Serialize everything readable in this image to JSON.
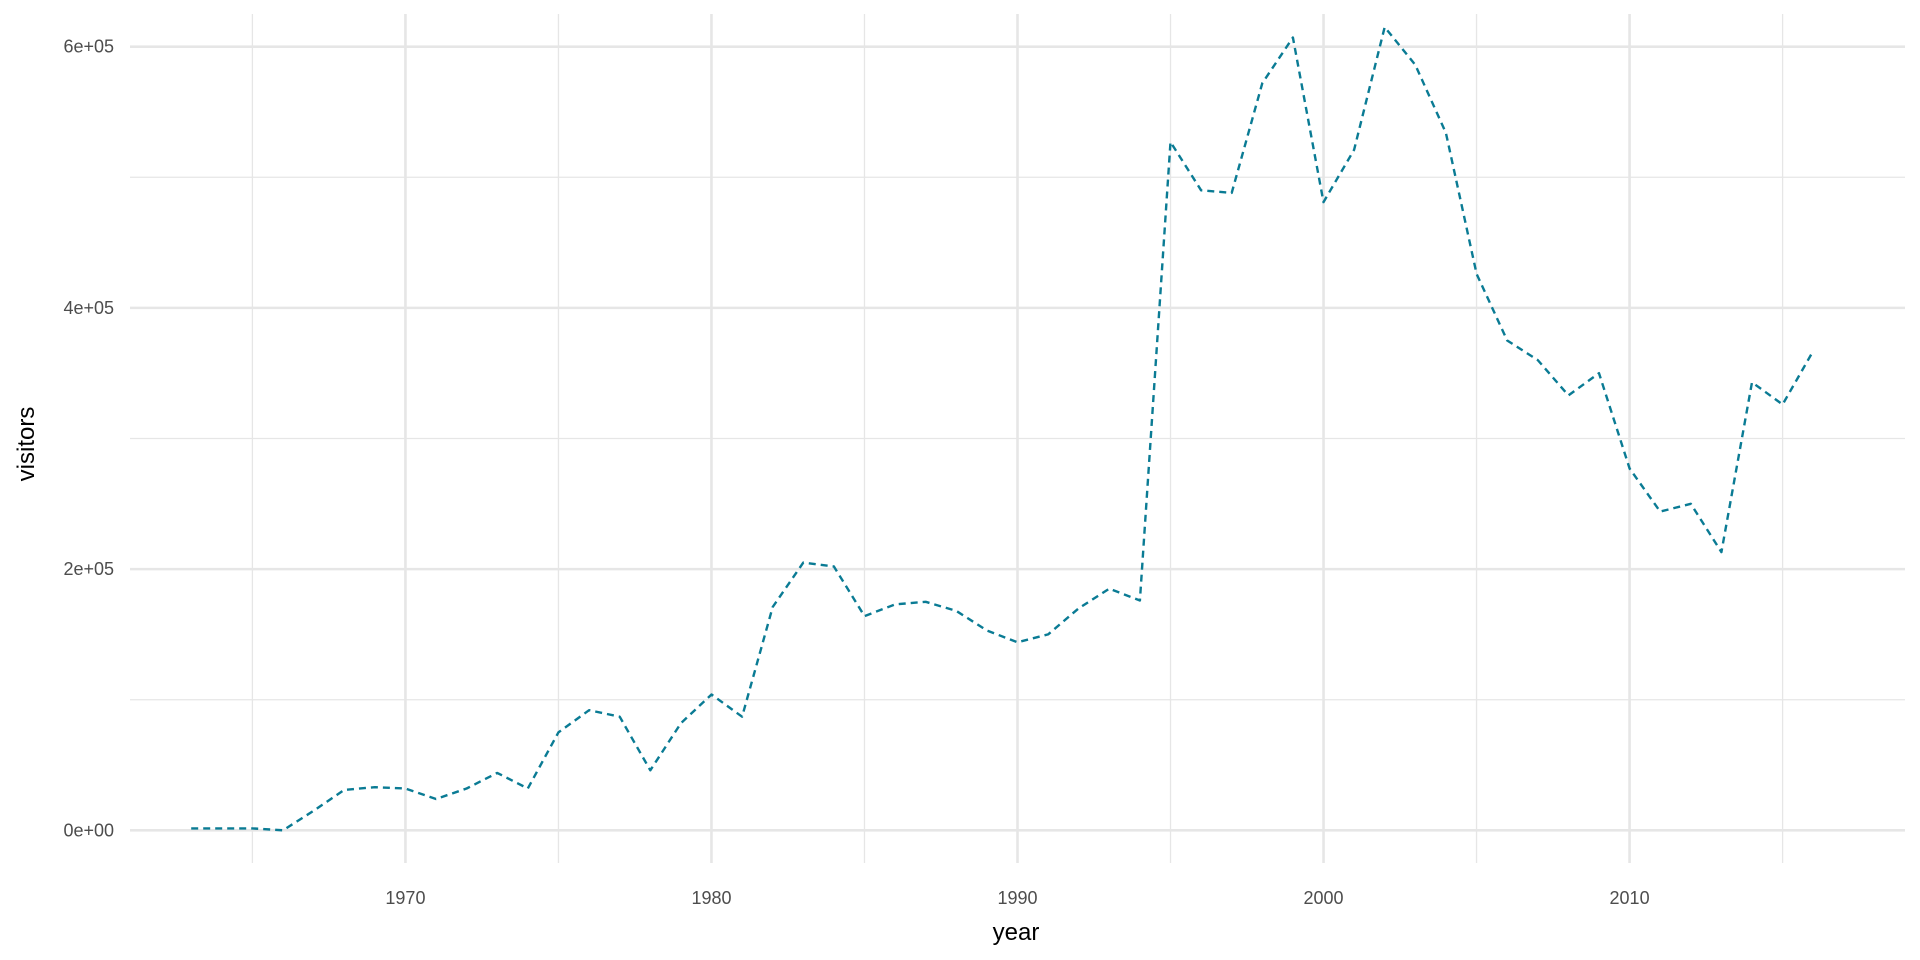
{
  "chart_data": {
    "type": "line",
    "xlabel": "year",
    "ylabel": "visitors",
    "xlim": [
      1961,
      2019
    ],
    "ylim": [
      -25000,
      625000
    ],
    "x_ticks": [
      1970,
      1980,
      1990,
      2000,
      2010
    ],
    "x_tick_labels": [
      "1970",
      "1980",
      "1990",
      "2000",
      "2010"
    ],
    "x_minor_ticks": [
      1965,
      1975,
      1985,
      1995,
      2005,
      2015
    ],
    "y_ticks": [
      0,
      200000,
      400000,
      600000
    ],
    "y_tick_labels": [
      "0e+00",
      "2e+05",
      "4e+05",
      "6e+05"
    ],
    "y_minor_ticks": [
      100000,
      300000,
      500000
    ],
    "grid": true,
    "line_style": "dashed",
    "colors": {
      "line": "#0a7b94",
      "grid": "#e6e6e6",
      "background": "#ffffff"
    },
    "x": [
      1963,
      1964,
      1965,
      1966,
      1967,
      1968,
      1969,
      1970,
      1971,
      1972,
      1973,
      1974,
      1975,
      1976,
      1977,
      1978,
      1979,
      1980,
      1981,
      1982,
      1983,
      1984,
      1985,
      1986,
      1987,
      1988,
      1989,
      1990,
      1991,
      1992,
      1993,
      1994,
      1995,
      1996,
      1997,
      1998,
      1999,
      2000,
      2001,
      2002,
      2003,
      2004,
      2005,
      2006,
      2007,
      2008,
      2009,
      2010,
      2011,
      2012,
      2013,
      2014,
      2015,
      2016
    ],
    "series": [
      {
        "values": [
          1500,
          1500,
          1500,
          0,
          15000,
          31000,
          33000,
          32000,
          24000,
          32000,
          44000,
          32000,
          75000,
          92000,
          87000,
          46000,
          82000,
          104000,
          87000,
          171000,
          205000,
          202000,
          164000,
          173000,
          175000,
          168000,
          153000,
          144000,
          150000,
          170000,
          185000,
          176000,
          527000,
          490000,
          488000,
          572000,
          607000,
          481000,
          521000,
          615000,
          586000,
          534000,
          426000,
          375000,
          360000,
          333000,
          350000,
          277000,
          244000,
          250000,
          213000,
          343000,
          326000,
          367000
        ]
      }
    ]
  }
}
